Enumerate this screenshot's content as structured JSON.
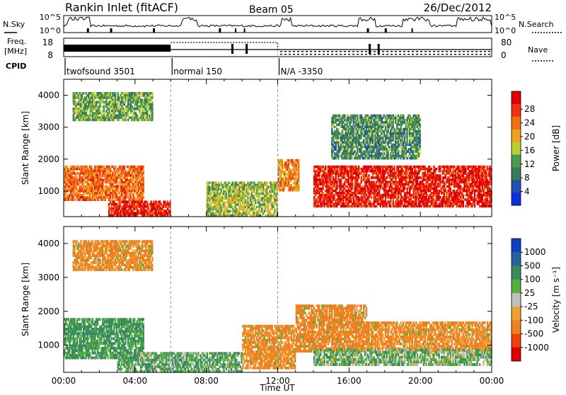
{
  "header": {
    "station": "Rankin Inlet (fitACF)",
    "beam": "Beam 05",
    "date": "26/Dec/2012"
  },
  "status_panels": {
    "nsky_label": "N.Sky",
    "nsearch_label": "N.Search",
    "sky_ticks": [
      "10^5",
      "10^0"
    ],
    "freq_label_1": "Freq.",
    "freq_label_2": "[MHz]",
    "freq_ticks": [
      "18",
      "8"
    ],
    "nave_label": "Nave",
    "nave_ticks": [
      "80",
      "0"
    ],
    "cpid_label": "CPID",
    "cpid_segments": [
      {
        "name": "twofsound 3501",
        "start_hour": 0
      },
      {
        "name": "normal 150",
        "start_hour": 6
      },
      {
        "name": "N/A -3350",
        "start_hour": 12
      }
    ]
  },
  "colors": {
    "power_scale": [
      "#1030e0",
      "#2050b0",
      "#3a7a5a",
      "#4a9a50",
      "#b8d030",
      "#f0a020",
      "#f07010",
      "#f03010",
      "#e00000"
    ],
    "velocity_scale": [
      "#1040c0",
      "#2a60a0",
      "#3a8a60",
      "#55b040",
      "#c0c0c0",
      "#f0a030",
      "#f08020",
      "#f04010",
      "#e00000"
    ]
  },
  "chart_data": [
    {
      "type": "heatmap",
      "panel": "power",
      "x_unit": "hours UT",
      "xlim": [
        0,
        24
      ],
      "x_ticks": [
        "00:00",
        "04:00",
        "08:00",
        "12:00",
        "16:00",
        "20:00",
        "00:00"
      ],
      "xlabel": "",
      "ylabel": "Slant Range [km]",
      "ylim": [
        200,
        4500
      ],
      "y_ticks": [
        1000,
        2000,
        3000,
        4000
      ],
      "colorbar_label": "Power [dB]",
      "colorbar_ticks": [
        "4",
        "8",
        "12",
        "16",
        "20",
        "24",
        "28"
      ],
      "colorbar_range": [
        0,
        30
      ],
      "scatter_regions": [
        {
          "t_start": 0,
          "t_end": 4.5,
          "range_start": 700,
          "range_end": 1800,
          "value": 22
        },
        {
          "t_start": 2.5,
          "t_end": 6,
          "range_start": 200,
          "range_end": 700,
          "value": 27
        },
        {
          "t_start": 8,
          "t_end": 12,
          "range_start": 200,
          "range_end": 1300,
          "value": 14
        },
        {
          "t_start": 12,
          "t_end": 13.2,
          "range_start": 1000,
          "range_end": 2000,
          "value": 20
        },
        {
          "t_start": 14,
          "t_end": 24,
          "range_start": 500,
          "range_end": 1800,
          "value": 27
        },
        {
          "t_start": 0.5,
          "t_end": 5,
          "range_start": 3200,
          "range_end": 4100,
          "value": 12
        },
        {
          "t_start": 15,
          "t_end": 20,
          "range_start": 2000,
          "range_end": 3400,
          "value": 10
        }
      ]
    },
    {
      "type": "heatmap",
      "panel": "velocity",
      "x_unit": "hours UT",
      "xlim": [
        0,
        24
      ],
      "x_ticks": [
        "00:00",
        "04:00",
        "08:00",
        "12:00",
        "16:00",
        "20:00",
        "00:00"
      ],
      "xlabel": "Time UT",
      "ylabel": "Slant Range [km]",
      "ylim": [
        200,
        4500
      ],
      "y_ticks": [
        1000,
        2000,
        3000,
        4000
      ],
      "colorbar_label": "Velocity [m s⁻¹]",
      "colorbar_ticks": [
        "1000",
        "500",
        "100",
        "25",
        "-25",
        "-100",
        "-500",
        "-1000"
      ],
      "colorbar_range": [
        -1000,
        1000
      ],
      "scatter_regions": [
        {
          "t_start": 0,
          "t_end": 4.5,
          "range_start": 600,
          "range_end": 1800,
          "value": 150
        },
        {
          "t_start": 3,
          "t_end": 10,
          "range_start": 200,
          "range_end": 800,
          "value": 80
        },
        {
          "t_start": 10,
          "t_end": 13,
          "range_start": 300,
          "range_end": 1600,
          "value": -150
        },
        {
          "t_start": 13,
          "t_end": 17,
          "range_start": 800,
          "range_end": 2200,
          "value": -200
        },
        {
          "t_start": 17,
          "t_end": 24,
          "range_start": 800,
          "range_end": 1700,
          "value": -150
        },
        {
          "t_start": 14,
          "t_end": 24,
          "range_start": 400,
          "range_end": 900,
          "value": 60
        },
        {
          "t_start": 0.5,
          "t_end": 5,
          "range_start": 3200,
          "range_end": 4100,
          "value": -150
        }
      ]
    }
  ]
}
